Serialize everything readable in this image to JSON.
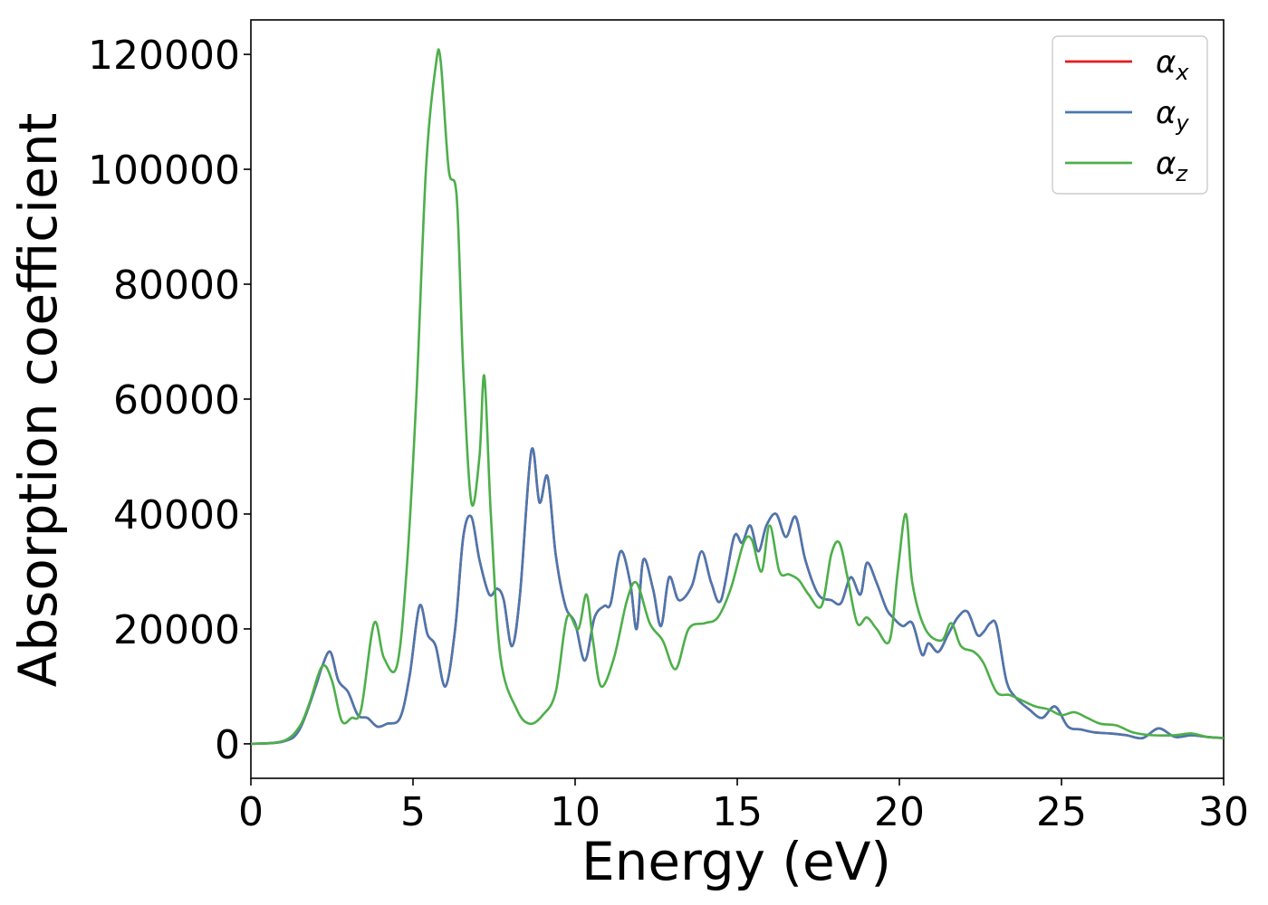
{
  "chart_data": {
    "type": "line",
    "title": "",
    "xlabel": "Energy (eV)",
    "ylabel": "Absorption coefficient",
    "xlim": [
      0,
      30
    ],
    "ylim": [
      -6000,
      126000
    ],
    "x_ticks": [
      0,
      5,
      10,
      15,
      20,
      25,
      30
    ],
    "y_ticks": [
      0,
      20000,
      40000,
      60000,
      80000,
      100000,
      120000
    ],
    "x_tick_labels": [
      "0",
      "5",
      "10",
      "15",
      "20",
      "25",
      "30"
    ],
    "y_tick_labels": [
      "0",
      "20000",
      "40000",
      "60000",
      "80000",
      "100000",
      "120000"
    ],
    "grid": false,
    "legend_position": "top-right",
    "series": [
      {
        "name": "α_x",
        "symbol": "α",
        "subscript": "x",
        "color": "#e41a1c",
        "x": [
          0,
          1,
          1.5,
          2,
          2.2,
          2.45,
          2.7,
          3,
          3.3,
          3.6,
          3.9,
          4.2,
          4.6,
          4.9,
          5.2,
          5.45,
          5.7,
          6,
          6.3,
          6.55,
          6.8,
          7.05,
          7.35,
          7.6,
          7.8,
          8.05,
          8.3,
          8.65,
          8.9,
          9.15,
          9.4,
          9.7,
          10,
          10.3,
          10.6,
          10.9,
          11.1,
          11.4,
          11.7,
          11.9,
          12.1,
          12.4,
          12.65,
          12.9,
          13.2,
          13.6,
          13.9,
          14.2,
          14.5,
          14.9,
          15.15,
          15.4,
          15.65,
          15.9,
          16.2,
          16.5,
          16.8,
          17.1,
          17.5,
          17.9,
          18.2,
          18.5,
          18.8,
          19,
          19.3,
          19.6,
          19.8,
          20.1,
          20.4,
          20.7,
          20.9,
          21.2,
          21.5,
          21.8,
          22.1,
          22.4,
          22.6,
          22.8,
          23,
          23.3,
          23.6,
          24,
          24.4,
          24.8,
          25.2,
          25.6,
          26,
          26.5,
          27,
          27.5,
          28,
          28.5,
          29,
          29.5,
          30
        ],
        "y": [
          0,
          400,
          2500,
          10000,
          13500,
          16000,
          11000,
          9000,
          5000,
          4500,
          3000,
          3500,
          4500,
          12000,
          24000,
          19000,
          17000,
          10000,
          20000,
          36000,
          39500,
          32000,
          26000,
          27000,
          25000,
          17000,
          26000,
          51000,
          42000,
          46500,
          33000,
          24000,
          21000,
          14500,
          22000,
          24000,
          24500,
          33500,
          28000,
          20000,
          32000,
          27000,
          20500,
          29000,
          25000,
          27500,
          33500,
          28000,
          25000,
          36000,
          35000,
          38000,
          33500,
          38000,
          40000,
          36000,
          39500,
          32000,
          26000,
          25000,
          24500,
          29000,
          26000,
          31500,
          28000,
          23500,
          22000,
          20500,
          21000,
          15500,
          17500,
          16000,
          19000,
          22000,
          23000,
          19000,
          19500,
          21000,
          20500,
          11000,
          8000,
          6000,
          4500,
          6500,
          3000,
          2500,
          2000,
          1800,
          1500,
          1000,
          2700,
          1200,
          1500,
          1200,
          1000
        ]
      },
      {
        "name": "α_y",
        "symbol": "α",
        "subscript": "y",
        "color": "#4a78b0",
        "x": [
          0,
          1,
          1.5,
          2,
          2.2,
          2.45,
          2.7,
          3,
          3.3,
          3.6,
          3.9,
          4.2,
          4.6,
          4.9,
          5.2,
          5.45,
          5.7,
          6,
          6.3,
          6.55,
          6.8,
          7.05,
          7.35,
          7.6,
          7.8,
          8.05,
          8.3,
          8.65,
          8.9,
          9.15,
          9.4,
          9.7,
          10,
          10.3,
          10.6,
          10.9,
          11.1,
          11.4,
          11.7,
          11.9,
          12.1,
          12.4,
          12.65,
          12.9,
          13.2,
          13.6,
          13.9,
          14.2,
          14.5,
          14.9,
          15.15,
          15.4,
          15.65,
          15.9,
          16.2,
          16.5,
          16.8,
          17.1,
          17.5,
          17.9,
          18.2,
          18.5,
          18.8,
          19,
          19.3,
          19.6,
          19.8,
          20.1,
          20.4,
          20.7,
          20.9,
          21.2,
          21.5,
          21.8,
          22.1,
          22.4,
          22.6,
          22.8,
          23,
          23.3,
          23.6,
          24,
          24.4,
          24.8,
          25.2,
          25.6,
          26,
          26.5,
          27,
          27.5,
          28,
          28.5,
          29,
          29.5,
          30
        ],
        "y": [
          0,
          400,
          2500,
          10000,
          13500,
          16000,
          11000,
          9000,
          5000,
          4500,
          3000,
          3500,
          4500,
          12000,
          24000,
          19000,
          17000,
          10000,
          20000,
          36000,
          39500,
          32000,
          26000,
          27000,
          25000,
          17000,
          26000,
          51000,
          42000,
          46500,
          33000,
          24000,
          21000,
          14500,
          22000,
          24000,
          24500,
          33500,
          28000,
          20000,
          32000,
          27000,
          20500,
          29000,
          25000,
          27500,
          33500,
          28000,
          25000,
          36000,
          35000,
          38000,
          33500,
          38000,
          40000,
          36000,
          39500,
          32000,
          26000,
          25000,
          24500,
          29000,
          26000,
          31500,
          28000,
          23500,
          22000,
          20500,
          21000,
          15500,
          17500,
          16000,
          19000,
          22000,
          23000,
          19000,
          19500,
          21000,
          20500,
          11000,
          8000,
          6000,
          4500,
          6500,
          3000,
          2500,
          2000,
          1800,
          1500,
          1000,
          2700,
          1200,
          1500,
          1200,
          1000
        ]
      },
      {
        "name": "α_z",
        "symbol": "α",
        "subscript": "z",
        "color": "#4daf4a",
        "x": [
          0,
          1,
          1.5,
          1.8,
          2.2,
          2.5,
          2.8,
          3.1,
          3.4,
          3.8,
          4.1,
          4.5,
          4.8,
          5.1,
          5.4,
          5.7,
          5.85,
          6.1,
          6.35,
          6.55,
          6.8,
          7.05,
          7.2,
          7.4,
          7.7,
          8.2,
          8.6,
          9,
          9.4,
          9.75,
          10.1,
          10.35,
          10.55,
          10.8,
          11.2,
          11.6,
          11.9,
          12.3,
          12.7,
          13.1,
          13.5,
          14,
          14.4,
          14.8,
          15.2,
          15.45,
          15.75,
          16,
          16.3,
          16.6,
          16.9,
          17.2,
          17.6,
          17.9,
          18.15,
          18.4,
          18.7,
          19,
          19.3,
          19.7,
          19.95,
          20.2,
          20.4,
          20.8,
          21.3,
          21.6,
          21.9,
          22.3,
          22.6,
          23,
          23.4,
          23.8,
          24.2,
          24.6,
          25,
          25.4,
          25.8,
          26.2,
          26.7,
          27.2,
          27.8,
          28.5,
          29,
          29.5,
          30
        ],
        "y": [
          0,
          500,
          3000,
          7000,
          13500,
          11000,
          4000,
          4500,
          6000,
          21000,
          15000,
          13500,
          30000,
          60000,
          100000,
          118000,
          119000,
          100000,
          95000,
          65000,
          42000,
          50000,
          64000,
          40000,
          15000,
          6000,
          3500,
          5000,
          9000,
          22000,
          20000,
          26000,
          18000,
          10000,
          15000,
          25000,
          28000,
          21000,
          18000,
          13000,
          20000,
          21000,
          22000,
          27000,
          35000,
          35500,
          30000,
          38000,
          30000,
          29500,
          28500,
          26000,
          24000,
          33000,
          35000,
          29000,
          21000,
          22000,
          20000,
          18000,
          30000,
          40000,
          28000,
          20000,
          18000,
          21000,
          17000,
          16000,
          14000,
          9000,
          8500,
          7500,
          6500,
          6000,
          5000,
          5500,
          4500,
          3500,
          3200,
          2000,
          1500,
          1500,
          1800,
          1200,
          1000
        ]
      }
    ]
  }
}
